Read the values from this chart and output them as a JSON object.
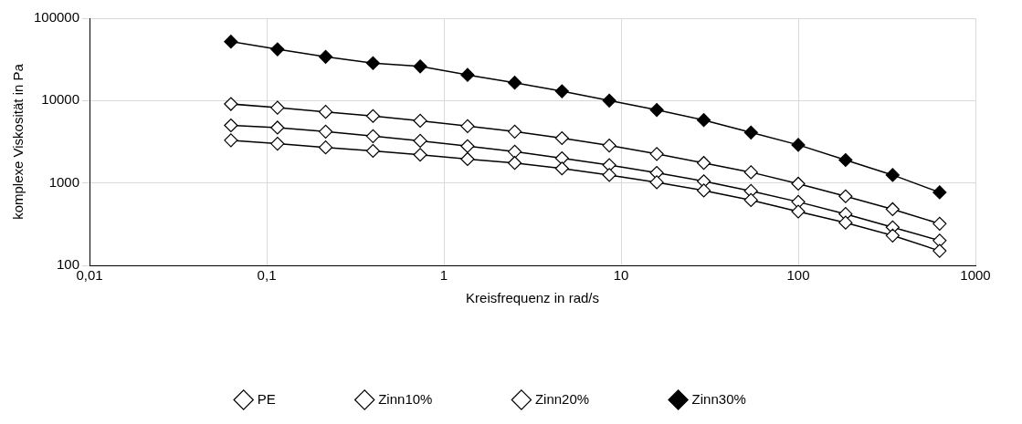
{
  "chart_data": {
    "type": "line",
    "xlabel": "Kreisfrequenz in rad/s",
    "ylabel": "komplexe Viskosität in Pa",
    "log": "xy",
    "grid": true,
    "legend": "bottom",
    "marker": "diamond",
    "line_style": "solid",
    "x": [
      0.0628,
      0.115,
      0.215,
      0.398,
      0.735,
      1.36,
      2.51,
      4.64,
      8.58,
      15.9,
      29.3,
      54.1,
      100,
      185,
      341,
      628
    ],
    "xlim": [
      0.01,
      1000
    ],
    "xticks": [
      {
        "value": 0.01,
        "label": "0,01"
      },
      {
        "value": 0.1,
        "label": "0,1"
      },
      1,
      10,
      100,
      1000
    ],
    "ylim": [
      100,
      100000
    ],
    "yticks": [
      100,
      1000,
      10000,
      100000
    ],
    "series": [
      {
        "name": "PE",
        "color": "#ffffff",
        "values": [
          3300,
          3000,
          2700,
          2450,
          2200,
          1950,
          1750,
          1500,
          1250,
          1020,
          810,
          620,
          450,
          330,
          230,
          150
        ]
      },
      {
        "name": "Zinn10%",
        "color": "#ffffff",
        "values": [
          5000,
          4700,
          4200,
          3700,
          3250,
          2800,
          2400,
          2000,
          1650,
          1330,
          1050,
          800,
          590,
          420,
          290,
          200
        ]
      },
      {
        "name": "Zinn20%",
        "color": "#ffffff",
        "values": [
          9100,
          8200,
          7300,
          6500,
          5700,
          4900,
          4200,
          3500,
          2850,
          2250,
          1750,
          1350,
          980,
          690,
          480,
          320
        ]
      },
      {
        "name": "Zinn30%",
        "color": "#000000",
        "values": [
          52000,
          42000,
          34000,
          28500,
          26000,
          20500,
          16500,
          13000,
          10000,
          7700,
          5800,
          4100,
          2900,
          1900,
          1250,
          770
        ]
      }
    ]
  }
}
